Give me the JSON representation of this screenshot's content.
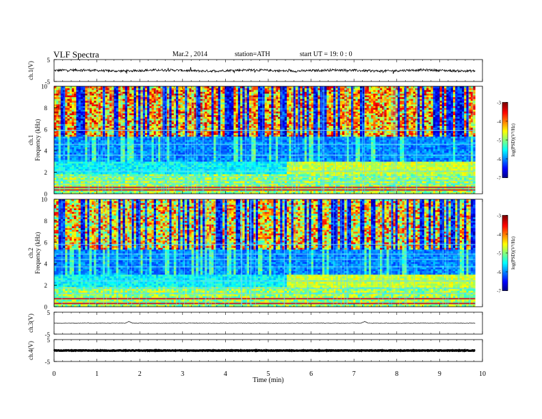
{
  "header": {
    "title": "VLF Spectra",
    "date": "Mar.2 , 2014",
    "station": "station=ATH",
    "start": "start UT = 19: 0 : 0"
  },
  "chart_data": [
    {
      "type": "line",
      "panel": "ch1",
      "ylabel": "ch.1(V)",
      "ylim": [
        -5,
        5
      ],
      "yticks": [
        "5",
        "-5"
      ],
      "xlim": [
        0,
        10
      ],
      "x_end": 9.83,
      "description_level": 0.0,
      "series": [
        {
          "values_mean": 0.0,
          "noise_amplitude": 0.6
        }
      ]
    },
    {
      "type": "heatmap",
      "panel": "ch1-spectrogram",
      "ylabel": "Frequency (kHz)",
      "channel_label": "ch.1",
      "ylim": [
        0,
        10
      ],
      "yticks": [
        "0",
        "2",
        "4",
        "6",
        "8",
        "10"
      ],
      "xlim": [
        0,
        10
      ],
      "x_end": 9.83,
      "colorbar": {
        "label": "log(PSD)(V²/Hz)",
        "ticks": [
          "-3",
          "-4",
          "-5",
          "-6",
          "-7"
        ],
        "range": [
          -7,
          -3
        ]
      }
    },
    {
      "type": "heatmap",
      "panel": "ch2-spectrogram",
      "ylabel": "Frequency (kHz)",
      "channel_label": "ch.2",
      "ylim": [
        0,
        10
      ],
      "yticks": [
        "0",
        "2",
        "4",
        "6",
        "8",
        "10"
      ],
      "xlim": [
        0,
        10
      ],
      "x_end": 9.83,
      "colorbar": {
        "label": "log(PSD)(V²/Hz)",
        "ticks": [
          "-3",
          "-4",
          "-5",
          "-6",
          "-7"
        ],
        "range": [
          -7,
          -3
        ]
      }
    },
    {
      "type": "line",
      "panel": "ch3",
      "ylabel": "ch.3(V)",
      "ylim": [
        -5,
        5
      ],
      "yticks": [
        "5",
        "-5"
      ],
      "xlim": [
        0,
        10
      ],
      "x_end": 9.83,
      "series": [
        {
          "values_mean": 0.0,
          "noise_amplitude": 0.1,
          "bumps_x": [
            1.75,
            7.25
          ]
        }
      ]
    },
    {
      "type": "line",
      "panel": "ch4",
      "ylabel": "ch.4(V)",
      "ylim": [
        -5,
        5
      ],
      "yticks": [
        "5",
        "-5"
      ],
      "xlim": [
        0,
        10
      ],
      "x_end": 9.83,
      "series": [
        {
          "values_mean": 0.0,
          "noise_amplitude": 0.15
        }
      ]
    }
  ],
  "xaxis": {
    "label": "Time (min)",
    "ticks": [
      "0",
      "1",
      "2",
      "3",
      "4",
      "5",
      "6",
      "7",
      "8",
      "9",
      "10"
    ]
  }
}
